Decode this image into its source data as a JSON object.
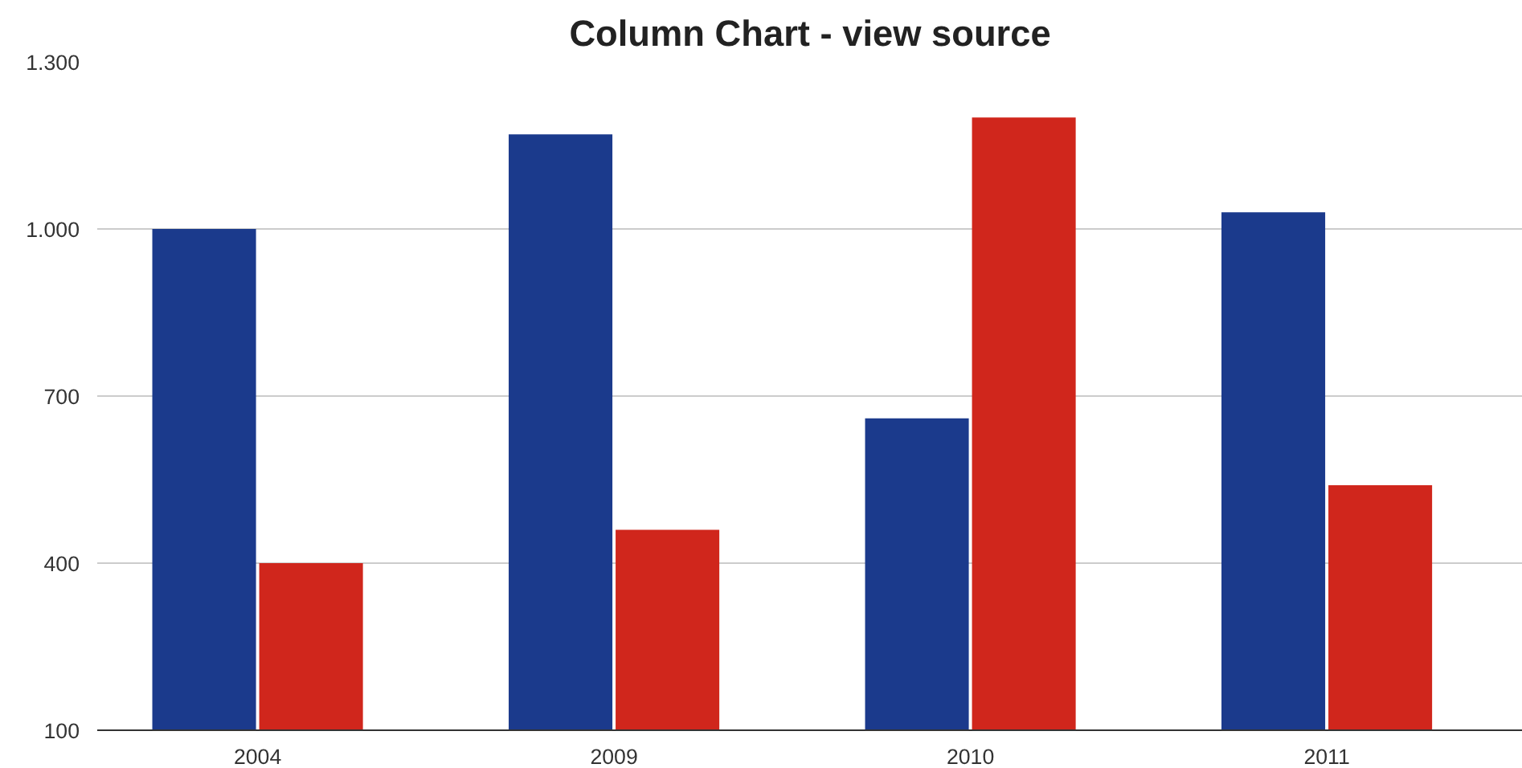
{
  "chart_data": {
    "type": "bar",
    "title": "Column Chart - view source",
    "categories": [
      "2004",
      "2009",
      "2010",
      "2011"
    ],
    "series": [
      {
        "color": "#1b3a8c",
        "values": [
          1000,
          1170,
          660,
          1030
        ]
      },
      {
        "color": "#d0261c",
        "values": [
          400,
          460,
          1200,
          540
        ]
      }
    ],
    "ylim": [
      100,
      1300
    ],
    "yticks": [
      100,
      400,
      700,
      {
        "value": 1000,
        "label": "1.000"
      },
      {
        "value": 1300,
        "label": "1.300"
      }
    ],
    "grid": "y"
  }
}
